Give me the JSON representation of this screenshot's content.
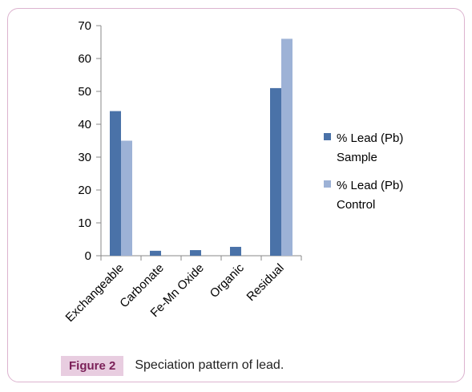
{
  "figure": {
    "tag": "Figure 2",
    "caption": "Speciation pattern of lead."
  },
  "chart_data": {
    "type": "bar",
    "categories": [
      "Exchangeable",
      "Carbonate",
      "Fe-Mn Oxide",
      "Organic",
      "Residual"
    ],
    "series": [
      {
        "name": "% Lead (Pb) Sample",
        "name_lines": [
          "% Lead (Pb)",
          "Sample"
        ],
        "color": "#4a72a8",
        "values": [
          44,
          1.5,
          1.7,
          2.7,
          51
        ]
      },
      {
        "name": "% Lead (Pb) Control",
        "name_lines": [
          "% Lead (Pb)",
          "Control"
        ],
        "color": "#9db2d6",
        "values": [
          35,
          0,
          0,
          0,
          66
        ]
      }
    ],
    "ylim": [
      0,
      70
    ],
    "yticks": [
      "0",
      "10",
      "20",
      "30",
      "40",
      "50",
      "60",
      "70"
    ],
    "legend": "right",
    "grid": false
  }
}
